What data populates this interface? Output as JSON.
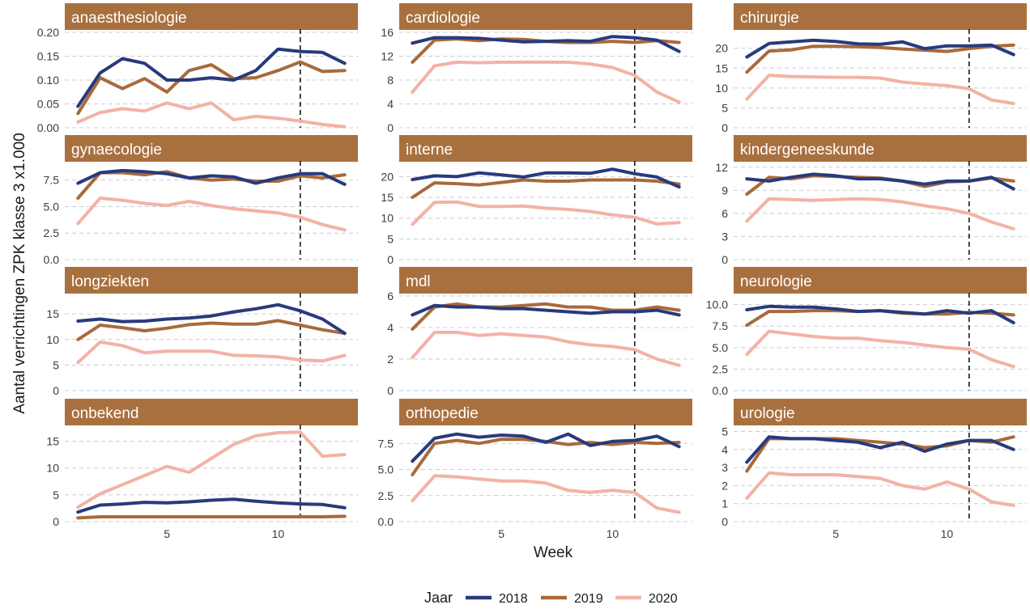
{
  "chart_data": {
    "type": "line",
    "title": "",
    "xlabel": "Week",
    "ylabel": "Aantal verrichtingen ZPK klasse 3 x1.000",
    "x": [
      1,
      2,
      3,
      4,
      5,
      6,
      7,
      8,
      9,
      10,
      11,
      12,
      13
    ],
    "xlim": [
      1,
      13
    ],
    "x_ticks": [
      5,
      10
    ],
    "x_tick_labels": [
      "5",
      "10"
    ],
    "reference_line_x": 11,
    "grid": "horizontal dashed",
    "legend": {
      "title": "Jaar",
      "position": "bottom",
      "entries": [
        "2018",
        "2019",
        "2020"
      ]
    },
    "series_colors": {
      "2018": "#283a7d",
      "2019": "#a86a3b",
      "2020": "#f3b2a6"
    },
    "strip_color": "#a9703f",
    "panels": [
      {
        "name": "anaesthesiologie",
        "ylim": [
          0,
          0.2
        ],
        "y_ticks": [
          0,
          0.05,
          0.1,
          0.15,
          0.2
        ],
        "y_tick_labels": [
          "0.00",
          "0.05",
          "0.10",
          "0.15",
          "0.20"
        ],
        "series": [
          {
            "name": "2018",
            "values": [
              0.045,
              0.115,
              0.145,
              0.135,
              0.1,
              0.1,
              0.105,
              0.1,
              0.12,
              0.165,
              0.16,
              0.158,
              0.135
            ]
          },
          {
            "name": "2019",
            "values": [
              0.03,
              0.105,
              0.082,
              0.103,
              0.075,
              0.12,
              0.132,
              0.103,
              0.105,
              0.12,
              0.138,
              0.118,
              0.12
            ]
          },
          {
            "name": "2020",
            "values": [
              0.012,
              0.032,
              0.04,
              0.035,
              0.052,
              0.04,
              0.052,
              0.017,
              0.024,
              0.02,
              0.014,
              0.007,
              0.002
            ]
          }
        ]
      },
      {
        "name": "cardiologie",
        "ylim": [
          0,
          16
        ],
        "y_ticks": [
          0,
          4,
          8,
          12,
          16
        ],
        "y_tick_labels": [
          "0",
          "4",
          "8",
          "12",
          "16"
        ],
        "series": [
          {
            "name": "2018",
            "values": [
              14.2,
              15.1,
              15.1,
              15.0,
              14.7,
              14.4,
              14.5,
              14.6,
              14.5,
              15.3,
              15.1,
              14.7,
              12.8
            ]
          },
          {
            "name": "2019",
            "values": [
              11.0,
              14.7,
              14.9,
              14.6,
              14.9,
              14.8,
              14.5,
              14.3,
              14.3,
              14.5,
              14.3,
              14.6,
              14.3
            ]
          },
          {
            "name": "2020",
            "values": [
              6.0,
              10.4,
              11.0,
              10.9,
              11.0,
              11.0,
              11.0,
              11.0,
              10.7,
              10.1,
              8.8,
              6.0,
              4.3
            ]
          }
        ]
      },
      {
        "name": "chirurgie",
        "ylim": [
          0,
          24
        ],
        "y_ticks": [
          0,
          5,
          10,
          15,
          20
        ],
        "y_tick_labels": [
          "0",
          "5",
          "10",
          "15",
          "20"
        ],
        "series": [
          {
            "name": "2018",
            "values": [
              17.8,
              21.2,
              21.6,
              22.0,
              21.7,
              21.1,
              21.0,
              21.6,
              19.9,
              20.6,
              20.6,
              20.8,
              18.4
            ]
          },
          {
            "name": "2019",
            "values": [
              14.0,
              19.3,
              19.6,
              20.5,
              20.5,
              20.4,
              20.2,
              19.8,
              19.5,
              19.2,
              19.9,
              20.5,
              20.8
            ]
          },
          {
            "name": "2020",
            "values": [
              7.2,
              13.2,
              12.9,
              12.8,
              12.7,
              12.7,
              12.5,
              11.5,
              11.0,
              10.6,
              9.8,
              7.0,
              6.1
            ]
          }
        ]
      },
      {
        "name": "gynaecologie",
        "ylim": [
          0,
          9
        ],
        "y_ticks": [
          0,
          2.5,
          5,
          7.5
        ],
        "y_tick_labels": [
          "0.0",
          "2.5",
          "5.0",
          "7.5"
        ],
        "series": [
          {
            "name": "2018",
            "values": [
              7.2,
              8.2,
              8.4,
              8.3,
              8.1,
              7.7,
              7.9,
              7.8,
              7.2,
              7.7,
              8.1,
              8.1,
              7.1
            ]
          },
          {
            "name": "2019",
            "values": [
              5.8,
              8.2,
              8.2,
              8.0,
              8.3,
              7.7,
              7.5,
              7.6,
              7.4,
              7.4,
              7.9,
              7.7,
              8.0
            ]
          },
          {
            "name": "2020",
            "values": [
              3.4,
              5.8,
              5.6,
              5.3,
              5.1,
              5.5,
              5.1,
              4.8,
              4.6,
              4.4,
              4.0,
              3.3,
              2.8
            ]
          }
        ]
      },
      {
        "name": "interne",
        "ylim": [
          0,
          23
        ],
        "y_ticks": [
          0,
          5,
          10,
          15,
          20
        ],
        "y_tick_labels": [
          "0",
          "5",
          "10",
          "15",
          "20"
        ],
        "series": [
          {
            "name": "2018",
            "values": [
              19.3,
              20.2,
              20.0,
              20.9,
              20.4,
              19.9,
              20.9,
              20.9,
              20.8,
              21.8,
              20.7,
              19.9,
              17.5
            ]
          },
          {
            "name": "2019",
            "values": [
              15.0,
              18.5,
              18.3,
              18.0,
              18.6,
              19.2,
              18.9,
              18.9,
              19.2,
              19.2,
              19.2,
              18.9,
              18.2
            ]
          },
          {
            "name": "2020",
            "values": [
              8.5,
              13.8,
              13.9,
              12.8,
              12.8,
              12.9,
              12.4,
              12.1,
              11.6,
              10.8,
              10.2,
              8.6,
              8.9
            ]
          }
        ]
      },
      {
        "name": "kindergeneeskunde",
        "ylim": [
          0,
          12.4
        ],
        "y_ticks": [
          0,
          3,
          6,
          9,
          12
        ],
        "y_tick_labels": [
          "0",
          "3",
          "6",
          "9",
          "12"
        ],
        "series": [
          {
            "name": "2018",
            "values": [
              10.5,
              10.2,
              10.7,
              11.1,
              10.9,
              10.5,
              10.5,
              10.2,
              9.8,
              10.2,
              10.2,
              10.7,
              9.2
            ]
          },
          {
            "name": "2019",
            "values": [
              8.5,
              10.7,
              10.5,
              10.9,
              10.8,
              10.7,
              10.6,
              10.2,
              9.5,
              10.1,
              10.2,
              10.6,
              10.2
            ]
          },
          {
            "name": "2020",
            "values": [
              5.0,
              7.9,
              7.8,
              7.7,
              7.8,
              7.9,
              7.8,
              7.5,
              7.0,
              6.6,
              6.0,
              4.9,
              4.0
            ]
          }
        ]
      },
      {
        "name": "longziekten",
        "ylim": [
          0,
          18.5
        ],
        "y_ticks": [
          0,
          5,
          10,
          15
        ],
        "y_tick_labels": [
          "0",
          "5",
          "10",
          "15"
        ],
        "series": [
          {
            "name": "2018",
            "values": [
              13.6,
              14.0,
              13.5,
              13.6,
              14.0,
              14.2,
              14.6,
              15.4,
              16.0,
              16.8,
              15.6,
              14.0,
              11.2
            ]
          },
          {
            "name": "2019",
            "values": [
              10.0,
              12.8,
              12.3,
              11.7,
              12.2,
              12.9,
              13.2,
              13.0,
              13.0,
              13.7,
              12.8,
              11.9,
              11.2
            ]
          },
          {
            "name": "2020",
            "values": [
              5.5,
              9.5,
              8.8,
              7.4,
              7.7,
              7.7,
              7.7,
              6.9,
              6.8,
              6.6,
              6.0,
              5.8,
              6.9
            ]
          }
        ]
      },
      {
        "name": "mdl",
        "ylim": [
          0,
          6
        ],
        "y_ticks": [
          0,
          2,
          4,
          6
        ],
        "y_tick_labels": [
          "0",
          "2",
          "4",
          "6"
        ],
        "series": [
          {
            "name": "2018",
            "values": [
              4.8,
              5.4,
              5.3,
              5.3,
              5.2,
              5.2,
              5.1,
              5.0,
              4.9,
              5.0,
              5.0,
              5.1,
              4.8
            ]
          },
          {
            "name": "2019",
            "values": [
              3.9,
              5.3,
              5.5,
              5.3,
              5.3,
              5.4,
              5.5,
              5.3,
              5.3,
              5.1,
              5.1,
              5.3,
              5.1
            ]
          },
          {
            "name": "2020",
            "values": [
              2.1,
              3.7,
              3.7,
              3.5,
              3.6,
              3.5,
              3.4,
              3.1,
              2.9,
              2.8,
              2.6,
              2.0,
              1.6
            ]
          }
        ]
      },
      {
        "name": "neurologie",
        "ylim": [
          0,
          11
        ],
        "y_ticks": [
          0,
          2.5,
          5,
          7.5,
          10
        ],
        "y_tick_labels": [
          "0.0",
          "2.5",
          "5.0",
          "7.5",
          "10.0"
        ],
        "series": [
          {
            "name": "2018",
            "values": [
              9.4,
              9.8,
              9.7,
              9.7,
              9.5,
              9.2,
              9.3,
              9.1,
              8.9,
              9.3,
              9.0,
              9.3,
              7.9
            ]
          },
          {
            "name": "2019",
            "values": [
              7.6,
              9.2,
              9.2,
              9.3,
              9.3,
              9.2,
              9.3,
              9.0,
              8.9,
              8.9,
              9.1,
              9.0,
              8.8
            ]
          },
          {
            "name": "2020",
            "values": [
              4.2,
              6.9,
              6.6,
              6.3,
              6.1,
              6.1,
              5.8,
              5.6,
              5.3,
              5.0,
              4.8,
              3.6,
              2.8
            ]
          }
        ]
      },
      {
        "name": "onbekend",
        "ylim": [
          0,
          17.5
        ],
        "y_ticks": [
          0,
          5,
          10,
          15
        ],
        "y_tick_labels": [
          "0",
          "5",
          "10",
          "15"
        ],
        "series": [
          {
            "name": "2018",
            "values": [
              1.8,
              3.1,
              3.3,
              3.6,
              3.5,
              3.7,
              4.0,
              4.2,
              3.8,
              3.5,
              3.3,
              3.2,
              2.6
            ]
          },
          {
            "name": "2019",
            "values": [
              0.7,
              0.9,
              0.9,
              0.9,
              0.9,
              0.9,
              0.9,
              0.9,
              0.9,
              0.9,
              0.9,
              0.9,
              1.0
            ]
          },
          {
            "name": "2020",
            "values": [
              2.7,
              5.2,
              6.9,
              8.6,
              10.3,
              9.2,
              11.8,
              14.4,
              16.0,
              16.6,
              16.7,
              12.2,
              12.5
            ]
          }
        ]
      },
      {
        "name": "orthopedie",
        "ylim": [
          0,
          9
        ],
        "y_ticks": [
          0,
          2.5,
          5,
          7.5
        ],
        "y_tick_labels": [
          "0.0",
          "2.5",
          "5.0",
          "7.5"
        ],
        "series": [
          {
            "name": "2018",
            "values": [
              5.8,
              8.0,
              8.4,
              8.1,
              8.3,
              8.2,
              7.6,
              8.4,
              7.3,
              7.7,
              7.8,
              8.2,
              7.2
            ]
          },
          {
            "name": "2019",
            "values": [
              4.5,
              7.5,
              7.8,
              7.5,
              7.9,
              7.9,
              7.7,
              7.4,
              7.6,
              7.4,
              7.6,
              7.5,
              7.6
            ]
          },
          {
            "name": "2020",
            "values": [
              2.0,
              4.4,
              4.3,
              4.1,
              3.9,
              3.9,
              3.7,
              3.0,
              2.8,
              3.0,
              2.8,
              1.3,
              0.9
            ]
          }
        ]
      },
      {
        "name": "urologie",
        "ylim": [
          0,
          5.2
        ],
        "y_ticks": [
          0,
          1,
          2,
          3,
          4,
          5
        ],
        "y_tick_labels": [
          "0",
          "1",
          "2",
          "3",
          "4",
          "5"
        ],
        "series": [
          {
            "name": "2018",
            "values": [
              3.3,
              4.7,
              4.6,
              4.6,
              4.5,
              4.4,
              4.1,
              4.4,
              3.9,
              4.3,
              4.5,
              4.5,
              4.0
            ]
          },
          {
            "name": "2019",
            "values": [
              2.8,
              4.6,
              4.6,
              4.6,
              4.6,
              4.5,
              4.4,
              4.3,
              4.1,
              4.2,
              4.5,
              4.4,
              4.7
            ]
          },
          {
            "name": "2020",
            "values": [
              1.3,
              2.7,
              2.6,
              2.6,
              2.6,
              2.5,
              2.4,
              2.0,
              1.8,
              2.2,
              1.8,
              1.1,
              0.9
            ]
          }
        ]
      }
    ]
  }
}
